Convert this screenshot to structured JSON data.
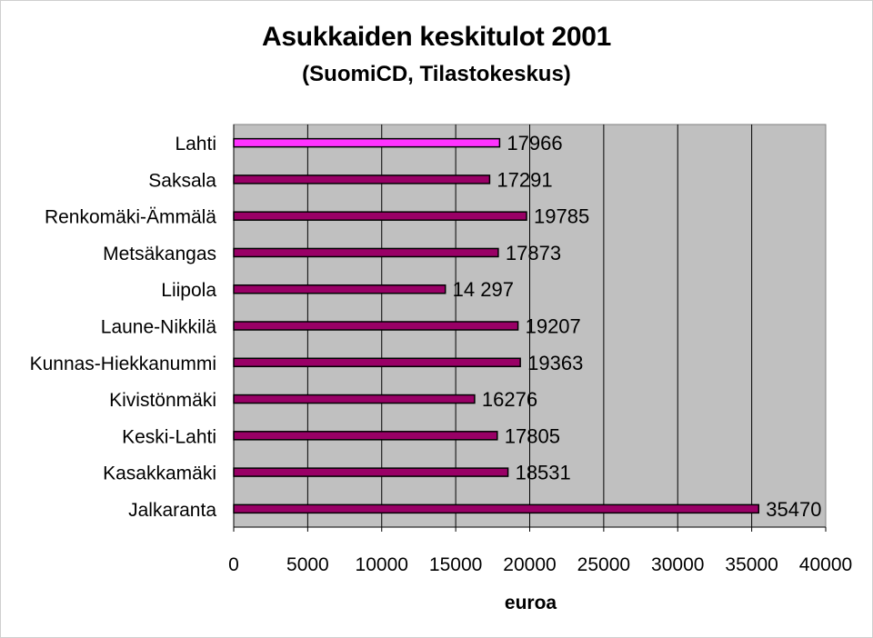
{
  "chart_data": {
    "type": "bar",
    "orientation": "horizontal",
    "title": "Asukkaiden keskitulot 2001",
    "subtitle": "(SuomiCD, Tilastokeskus)",
    "xlabel": "euroa",
    "xlim": [
      0,
      40000
    ],
    "xticks": [
      "0",
      "5000",
      "10000",
      "15000",
      "20000",
      "25000",
      "30000",
      "35000",
      "40000"
    ],
    "grid": true,
    "categories": [
      "Lahti",
      "Saksala",
      "Renkomäki-Ämmälä",
      "Metsäkangas",
      "Liipola",
      "Laune-Nikkilä",
      "Kunnas-Hiekkanummi",
      "Kivistönmäki",
      "Keski-Lahti",
      "Kasakkamäki",
      "Jalkaranta"
    ],
    "values": [
      17966,
      17291,
      19785,
      17873,
      14297,
      19207,
      19363,
      16276,
      17805,
      18531,
      35470
    ],
    "data_labels": [
      "17966",
      "17291",
      "19785",
      "17873",
      "14 297",
      "19207",
      "19363",
      "16276",
      "17805",
      "18531",
      "35470"
    ],
    "colors": {
      "highlight_bar": "#ff33ff",
      "bar": "#990066",
      "bar_border": "#000000",
      "plot_background": "#c0c0c0",
      "gridline": "#000000"
    },
    "highlight_index": 0
  }
}
